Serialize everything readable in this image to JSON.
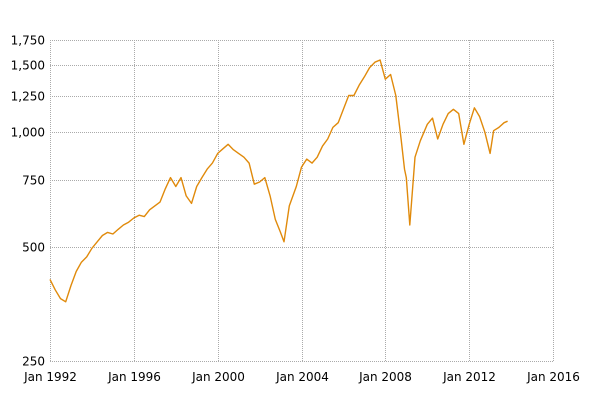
{
  "chart_data": {
    "type": "line",
    "title": "",
    "xlabel": "",
    "ylabel": "",
    "y_scale": "log",
    "ylim": [
      250,
      1750
    ],
    "xlim": [
      "1992-01",
      "2016-01"
    ],
    "grid": true,
    "legend": "none",
    "line_color": "#e08a0b",
    "grid_color": "#aaaaaa",
    "yticks": [
      {
        "value": 250,
        "label": "250"
      },
      {
        "value": 500,
        "label": "500"
      },
      {
        "value": 750,
        "label": "750"
      },
      {
        "value": 1000,
        "label": "1,000"
      },
      {
        "value": 1250,
        "label": "1,250"
      },
      {
        "value": 1500,
        "label": "1,500"
      },
      {
        "value": 1750,
        "label": "1,750"
      }
    ],
    "xticks": [
      {
        "value": "1992-01",
        "label": "Jan 1992"
      },
      {
        "value": "1996-01",
        "label": "Jan 1996"
      },
      {
        "value": "2000-01",
        "label": "Jan 2000"
      },
      {
        "value": "2004-01",
        "label": "Jan 2004"
      },
      {
        "value": "2008-01",
        "label": "Jan 2008"
      },
      {
        "value": "2012-01",
        "label": "Jan 2012"
      },
      {
        "value": "2016-01",
        "label": "Jan 2016"
      }
    ],
    "series": [
      {
        "points": [
          [
            "1992-01",
            410
          ],
          [
            "1992-04",
            385
          ],
          [
            "1992-07",
            365
          ],
          [
            "1992-10",
            358
          ],
          [
            "1993-01",
            395
          ],
          [
            "1993-04",
            430
          ],
          [
            "1993-07",
            455
          ],
          [
            "1993-10",
            470
          ],
          [
            "1994-01",
            495
          ],
          [
            "1994-04",
            515
          ],
          [
            "1994-07",
            535
          ],
          [
            "1994-10",
            545
          ],
          [
            "1995-01",
            540
          ],
          [
            "1995-04",
            555
          ],
          [
            "1995-07",
            570
          ],
          [
            "1995-10",
            580
          ],
          [
            "1996-01",
            595
          ],
          [
            "1996-04",
            605
          ],
          [
            "1996-07",
            600
          ],
          [
            "1996-10",
            625
          ],
          [
            "1997-01",
            640
          ],
          [
            "1997-04",
            655
          ],
          [
            "1997-07",
            710
          ],
          [
            "1997-10",
            760
          ],
          [
            "1998-01",
            720
          ],
          [
            "1998-04",
            760
          ],
          [
            "1998-07",
            680
          ],
          [
            "1998-10",
            650
          ],
          [
            "1999-01",
            720
          ],
          [
            "1999-04",
            760
          ],
          [
            "1999-07",
            800
          ],
          [
            "1999-10",
            830
          ],
          [
            "2000-01",
            880
          ],
          [
            "2000-04",
            905
          ],
          [
            "2000-07",
            930
          ],
          [
            "2000-10",
            900
          ],
          [
            "2001-01",
            880
          ],
          [
            "2001-04",
            860
          ],
          [
            "2001-07",
            830
          ],
          [
            "2001-10",
            730
          ],
          [
            "2002-01",
            740
          ],
          [
            "2002-04",
            760
          ],
          [
            "2002-07",
            680
          ],
          [
            "2002-10",
            590
          ],
          [
            "2003-01",
            545
          ],
          [
            "2003-03",
            515
          ],
          [
            "2003-06",
            640
          ],
          [
            "2003-10",
            720
          ],
          [
            "2004-01",
            810
          ],
          [
            "2004-04",
            850
          ],
          [
            "2004-07",
            830
          ],
          [
            "2004-10",
            860
          ],
          [
            "2005-01",
            920
          ],
          [
            "2005-04",
            960
          ],
          [
            "2005-07",
            1030
          ],
          [
            "2005-10",
            1060
          ],
          [
            "2006-01",
            1150
          ],
          [
            "2006-04",
            1250
          ],
          [
            "2006-07",
            1250
          ],
          [
            "2006-10",
            1330
          ],
          [
            "2007-01",
            1400
          ],
          [
            "2007-04",
            1480
          ],
          [
            "2007-07",
            1530
          ],
          [
            "2007-10",
            1550
          ],
          [
            "2008-01",
            1380
          ],
          [
            "2008-04",
            1420
          ],
          [
            "2008-07",
            1250
          ],
          [
            "2008-10",
            960
          ],
          [
            "2008-12",
            800
          ],
          [
            "2009-01",
            760
          ],
          [
            "2009-03",
            570
          ],
          [
            "2009-06",
            860
          ],
          [
            "2009-09",
            950
          ],
          [
            "2010-01",
            1050
          ],
          [
            "2010-04",
            1090
          ],
          [
            "2010-07",
            960
          ],
          [
            "2010-10",
            1050
          ],
          [
            "2011-01",
            1120
          ],
          [
            "2011-04",
            1150
          ],
          [
            "2011-07",
            1120
          ],
          [
            "2011-10",
            930
          ],
          [
            "2012-01",
            1050
          ],
          [
            "2012-04",
            1160
          ],
          [
            "2012-07",
            1100
          ],
          [
            "2012-10",
            1000
          ],
          [
            "2013-01",
            880
          ],
          [
            "2013-03",
            1010
          ],
          [
            "2013-06",
            1030
          ],
          [
            "2013-09",
            1060
          ],
          [
            "2013-11",
            1070
          ]
        ]
      }
    ]
  }
}
